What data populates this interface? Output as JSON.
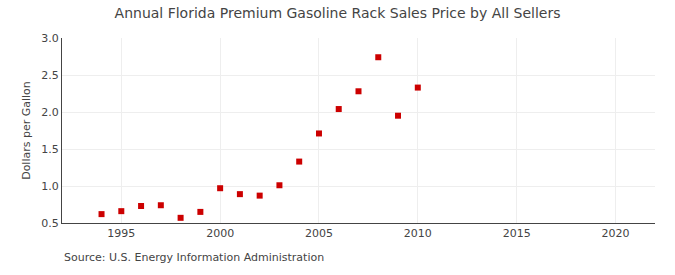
{
  "chart_data": {
    "type": "scatter",
    "title": "Annual Florida Premium Gasoline Rack Sales Price by All Sellers",
    "ylabel": "Dollars per Gallon",
    "annotations": [
      "Source: U.S. Energy Information Administration"
    ],
    "x": [
      1994,
      1995,
      1996,
      1997,
      1998,
      1999,
      2000,
      2001,
      2002,
      2003,
      2004,
      2005,
      2006,
      2007,
      2008,
      2009,
      2010
    ],
    "values": [
      0.62,
      0.66,
      0.73,
      0.74,
      0.57,
      0.65,
      0.97,
      0.89,
      0.87,
      1.01,
      1.33,
      1.71,
      2.04,
      2.28,
      2.74,
      1.95,
      2.33
    ],
    "color": "#cc0000",
    "marker": "square",
    "xlim": [
      1992,
      2022
    ],
    "xticks": [
      1995,
      2000,
      2005,
      2010,
      2015,
      2020
    ],
    "ylim": [
      0.5,
      3.0
    ],
    "yticks": [
      0.5,
      {
        "value": 1.0,
        "label": "1.0"
      },
      1.5,
      {
        "value": 2.0,
        "label": "2.0"
      },
      2.5,
      {
        "value": 3.0,
        "label": "3.0"
      }
    ],
    "grid": true
  }
}
